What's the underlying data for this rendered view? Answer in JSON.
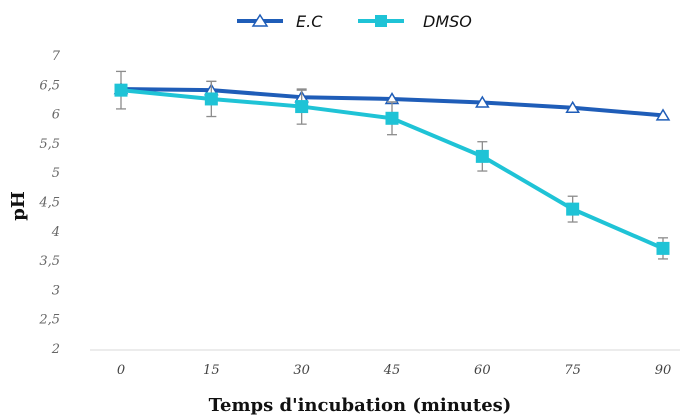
{
  "chart_data": {
    "type": "line",
    "title": "",
    "xlabel": "Temps d'incubation (minutes)",
    "ylabel": "pH",
    "x": [
      0,
      15,
      30,
      45,
      60,
      75,
      90
    ],
    "x_tick_labels": [
      "0",
      "15",
      "30",
      "45",
      "60",
      "75",
      "90"
    ],
    "y_tick_labels": [
      "2",
      "2,5",
      "3",
      "3,5",
      "4",
      "4,5",
      "5",
      "5,5",
      "6",
      "6,5",
      "7"
    ],
    "ylim": [
      2,
      7
    ],
    "grid": false,
    "legend_position": "top",
    "series": [
      {
        "name": "E.C",
        "color": "#1F5DB8",
        "marker": "triangle",
        "values": [
          6.42,
          6.4,
          6.28,
          6.25,
          6.19,
          6.1,
          5.97
        ],
        "error": [
          0,
          0.15,
          0.12,
          0,
          0,
          0,
          0
        ]
      },
      {
        "name": "DMSO",
        "color": "#1FC3D6",
        "marker": "square",
        "values": [
          6.4,
          6.25,
          6.12,
          5.92,
          5.27,
          4.37,
          3.7
        ],
        "error": [
          0.32,
          0.3,
          0.3,
          0.28,
          0.25,
          0.22,
          0.18
        ]
      }
    ]
  }
}
